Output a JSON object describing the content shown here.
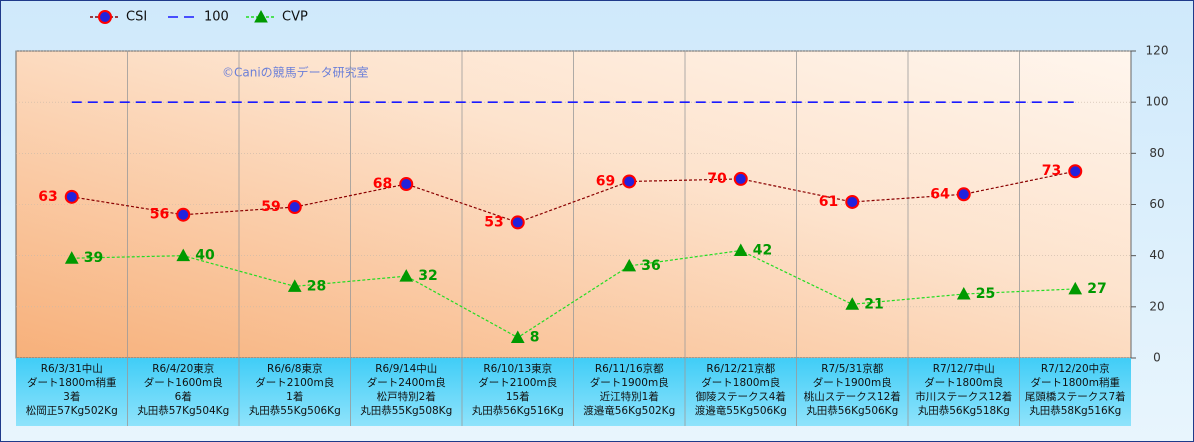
{
  "chart_data": {
    "type": "line",
    "annotation": "©Caniの競馬データ研究室",
    "categories": [
      [
        "R6/3/31中山",
        "ダート1800m稍重",
        "3着",
        "松岡正57Kg502Kg"
      ],
      [
        "R6/4/20東京",
        "ダート1600m良",
        "6着",
        "丸田恭57Kg504Kg"
      ],
      [
        "R6/6/8東京",
        "ダート2100m良",
        "1着",
        "丸田恭55Kg506Kg"
      ],
      [
        "R6/9/14中山",
        "ダート2400m良",
        "松戸特別2着",
        "丸田恭55Kg508Kg"
      ],
      [
        "R6/10/13東京",
        "ダート2100m良",
        "15着",
        "丸田恭56Kg516Kg"
      ],
      [
        "R6/11/16京都",
        "ダート1900m良",
        "近江特別1着",
        "渡邉竜56Kg502Kg"
      ],
      [
        "R6/12/21京都",
        "ダート1800m良",
        "御陵ステークス4着",
        "渡邉竜55Kg506Kg"
      ],
      [
        "R7/5/31京都",
        "ダート1900m良",
        "桃山ステークス12着",
        "丸田恭56Kg506Kg"
      ],
      [
        "R7/12/7中山",
        "ダート1800m良",
        "市川ステークス12着",
        "丸田恭56Kg518Kg"
      ],
      [
        "R7/12/20中京",
        "ダート1800m稍重",
        "尾頭橋ステークス7着",
        "丸田恭58Kg516Kg"
      ]
    ],
    "series": [
      {
        "name": "CSI",
        "color": "#8b0000",
        "marker": "circle",
        "marker_fill": "#2222dd",
        "marker_stroke": "#ff0000",
        "dash": "3,2",
        "data_labels": "left",
        "label_color": "#ff0000",
        "values": [
          63,
          56,
          59,
          68,
          53,
          69,
          70,
          61,
          64,
          73
        ]
      },
      {
        "name": "100",
        "color": "#1a1aff",
        "marker": "none",
        "dash": "10,6",
        "data_labels": "none",
        "values": [
          100,
          100,
          100,
          100,
          100,
          100,
          100,
          100,
          100,
          100
        ]
      },
      {
        "name": "CVP",
        "color": "#22dd22",
        "marker": "triangle",
        "marker_fill": "#009900",
        "marker_stroke": "#009900",
        "dash": "3,2",
        "data_labels": "right",
        "label_color": "#009900",
        "values": [
          39,
          40,
          28,
          32,
          8,
          36,
          42,
          21,
          25,
          27
        ]
      }
    ],
    "ylim": [
      0,
      120
    ],
    "yticks": [
      0,
      20,
      40,
      60,
      80,
      100,
      120
    ],
    "y_axis_side": "right",
    "grid": true
  }
}
